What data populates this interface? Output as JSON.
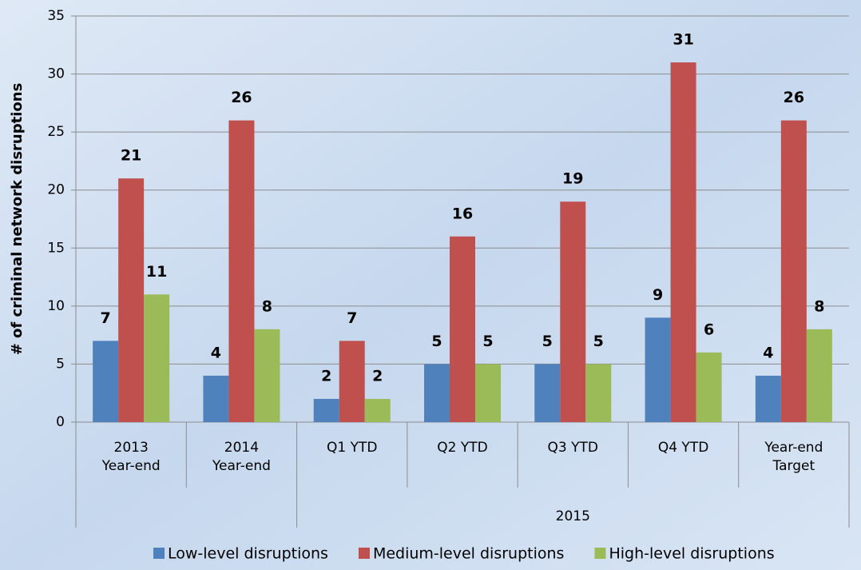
{
  "chart_data": {
    "type": "bar",
    "y_label": "# of criminal network disruptions",
    "category_groups": [
      {
        "label": null,
        "categories": [
          [
            "2013",
            "Year-end"
          ],
          [
            "2014",
            "Year-end"
          ]
        ]
      },
      {
        "label": "2015",
        "categories": [
          [
            "Q1 YTD"
          ],
          [
            "Q2 YTD"
          ],
          [
            "Q3 YTD"
          ],
          [
            "Q4 YTD"
          ],
          [
            "Year-end",
            "Target"
          ]
        ]
      }
    ],
    "series": [
      {
        "name": "Low-level disruptions",
        "color": "#4f81bd",
        "values": [
          7,
          4,
          2,
          5,
          5,
          9,
          4
        ]
      },
      {
        "name": "Medium-level disruptions",
        "color": "#c0504d",
        "values": [
          21,
          26,
          7,
          16,
          19,
          31,
          26
        ]
      },
      {
        "name": "High-level disruptions",
        "color": "#9bbb59",
        "values": [
          11,
          8,
          2,
          5,
          5,
          6,
          8
        ]
      }
    ],
    "ylim": [
      0,
      35
    ],
    "yticks": [
      0,
      5,
      10,
      15,
      20,
      25,
      30,
      35
    ],
    "grid": true,
    "legend": "bottom"
  }
}
